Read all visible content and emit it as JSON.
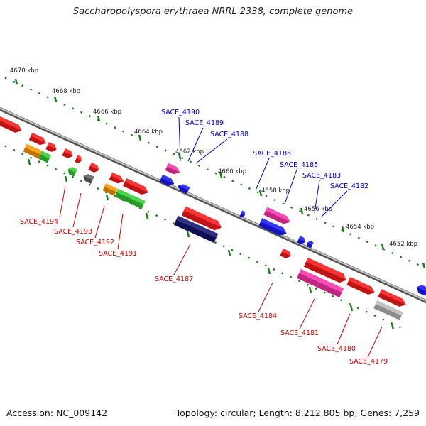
{
  "title": "Saccharopolyspora erythraea NRRL 2338, complete genome",
  "accession": "Accession: NC_009142",
  "topology": "Topology: circular; Length: 8,212,805 bp; Genes: 7,259",
  "colors": {
    "backbone": "#8a8a8a",
    "tick": "#1e7a1e",
    "label_top": "#0000cc",
    "label_bottom": "#cc0000",
    "red": "#ff1a1a",
    "orange": "#ff9900",
    "green": "#33cc33",
    "magenta": "#ff33aa",
    "blue": "#1a1aff",
    "navy": "#14146e",
    "gray": "#666666",
    "lightgray": "#bbbbbb"
  },
  "kbp_labels": [
    "4670 kbp",
    "4668 kbp",
    "4666 kbp",
    "4664 kbp",
    "4662 kbp",
    "4660 kbp",
    "4658 kbp",
    "4656 kbp",
    "4654 kbp",
    "4652 kbp"
  ],
  "top_labels": [
    "SACE_4190",
    "SACE_4189",
    "SACE_4188",
    "SACE_4186",
    "SACE_4185",
    "SACE_4183",
    "SACE_4182"
  ],
  "bottom_labels": [
    "SACE_4194",
    "SACE_4193",
    "SACE_4192",
    "SACE_4191",
    "SACE_4187",
    "SACE_4184",
    "SACE_4181",
    "SACE_4180",
    "SACE_4179"
  ]
}
